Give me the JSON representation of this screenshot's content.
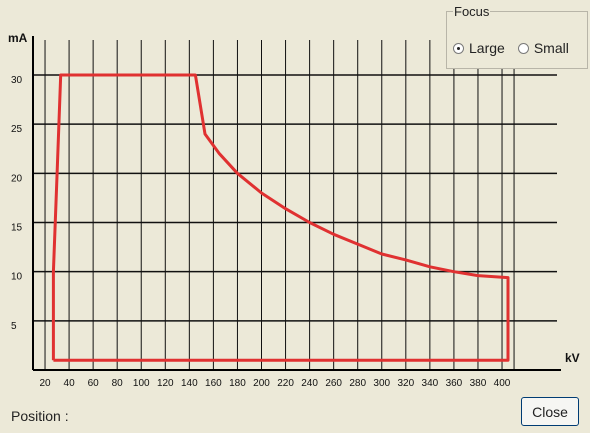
{
  "focus": {
    "title": "Focus",
    "options": [
      {
        "label": "Large",
        "selected": true
      },
      {
        "label": "Small",
        "selected": false
      }
    ]
  },
  "position_label": "Position :",
  "close_label": "Close",
  "chart_data": {
    "type": "line",
    "xlabel": "kV",
    "ylabel": "mA",
    "xlim": [
      10,
      420
    ],
    "ylim": [
      0,
      34
    ],
    "x_ticks": [
      20,
      40,
      60,
      80,
      100,
      120,
      140,
      160,
      180,
      200,
      220,
      240,
      260,
      280,
      300,
      320,
      340,
      360,
      380,
      400
    ],
    "y_ticks": [
      5,
      10,
      15,
      20,
      25,
      30
    ],
    "grid": true,
    "series": [
      {
        "color": "#e03131",
        "points": [
          [
            27,
            1
          ],
          [
            27,
            10
          ],
          [
            30,
            20
          ],
          [
            33,
            30
          ],
          [
            145,
            30
          ],
          [
            153,
            24
          ],
          [
            165,
            22
          ],
          [
            180,
            20
          ],
          [
            200,
            18
          ],
          [
            220,
            16.4
          ],
          [
            240,
            15
          ],
          [
            260,
            13.8
          ],
          [
            280,
            12.8
          ],
          [
            300,
            11.8
          ],
          [
            320,
            11.2
          ],
          [
            340,
            10.5
          ],
          [
            360,
            10
          ],
          [
            380,
            9.6
          ],
          [
            405,
            9.4
          ],
          [
            405,
            1
          ],
          [
            27,
            1
          ]
        ]
      }
    ]
  }
}
